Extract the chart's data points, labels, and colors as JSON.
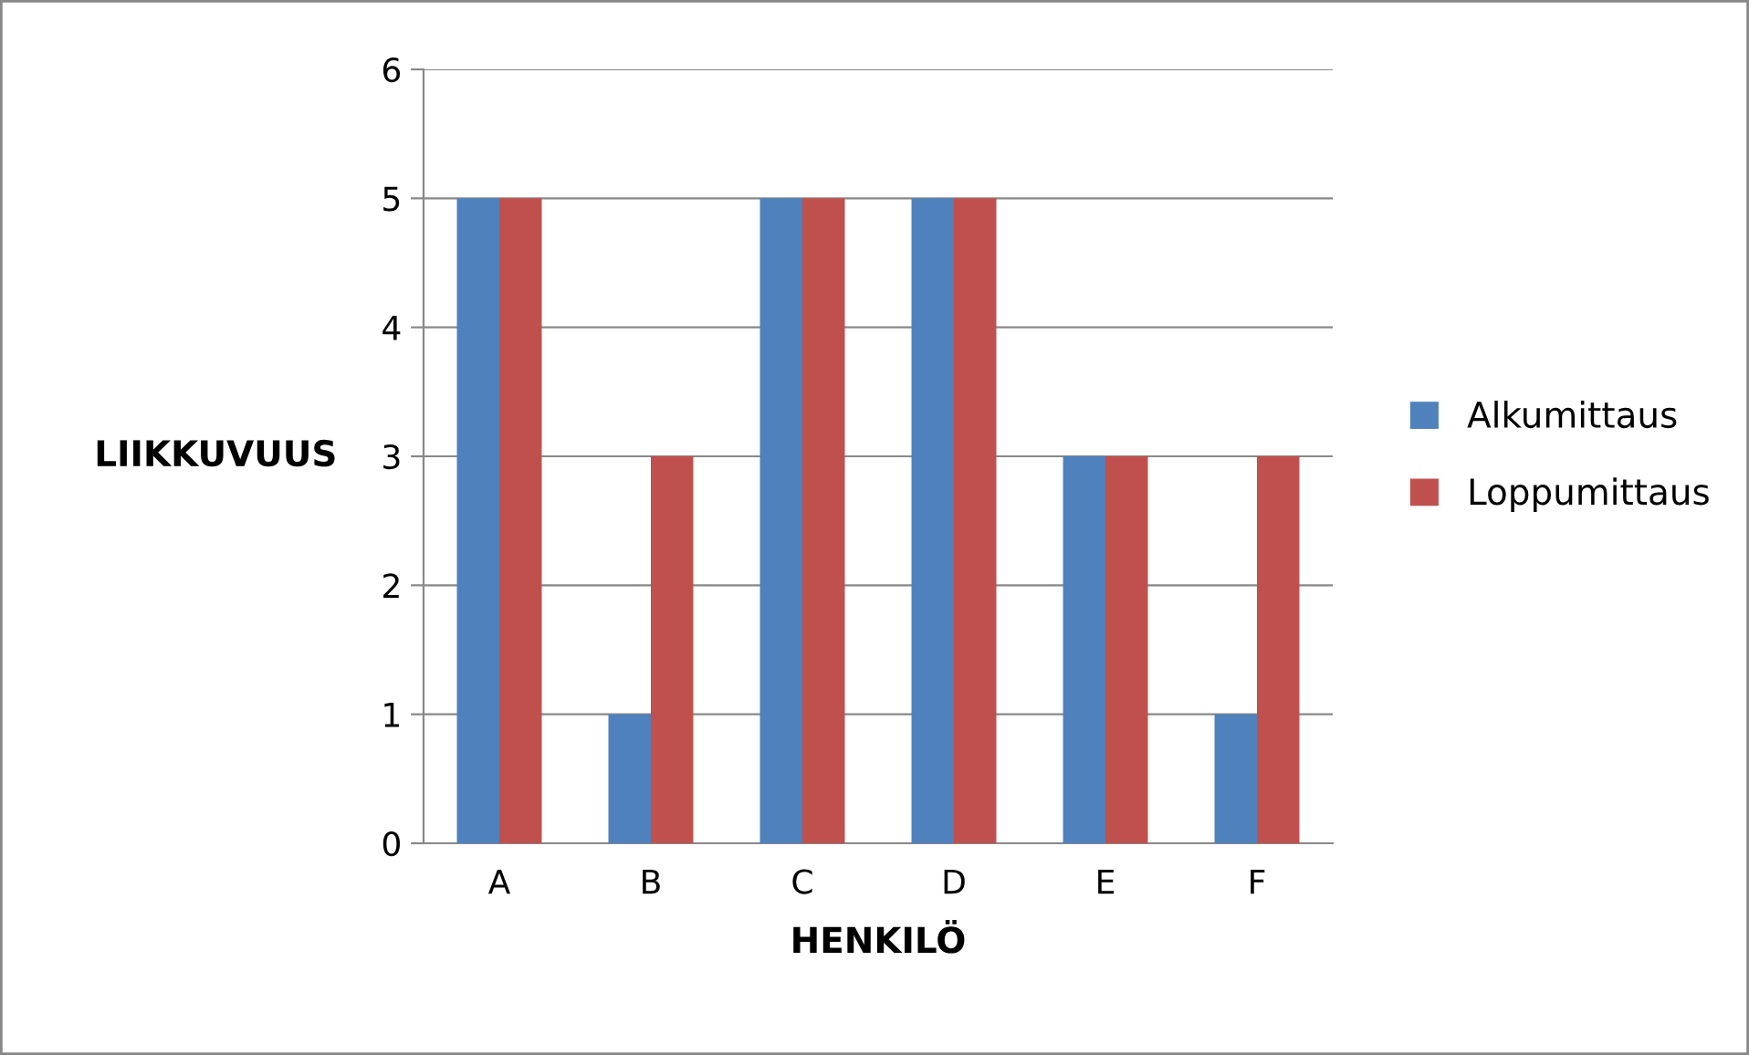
{
  "chart_data": {
    "type": "bar",
    "xlabel": "HENKILÖ",
    "ylabel": "LIIKKUVUUS",
    "categories": [
      "A",
      "B",
      "C",
      "D",
      "E",
      "F"
    ],
    "series": [
      {
        "name": "Alkumittaus",
        "color": "#4f81bd",
        "values": [
          5,
          1,
          5,
          5,
          3,
          1
        ]
      },
      {
        "name": "Loppumittaus",
        "color": "#c0504d",
        "values": [
          5,
          3,
          5,
          5,
          3,
          3
        ]
      }
    ],
    "ylim": [
      0,
      6
    ],
    "yticks": [
      0,
      1,
      2,
      3,
      4,
      5,
      6
    ],
    "grid": "y",
    "legend": "right"
  }
}
